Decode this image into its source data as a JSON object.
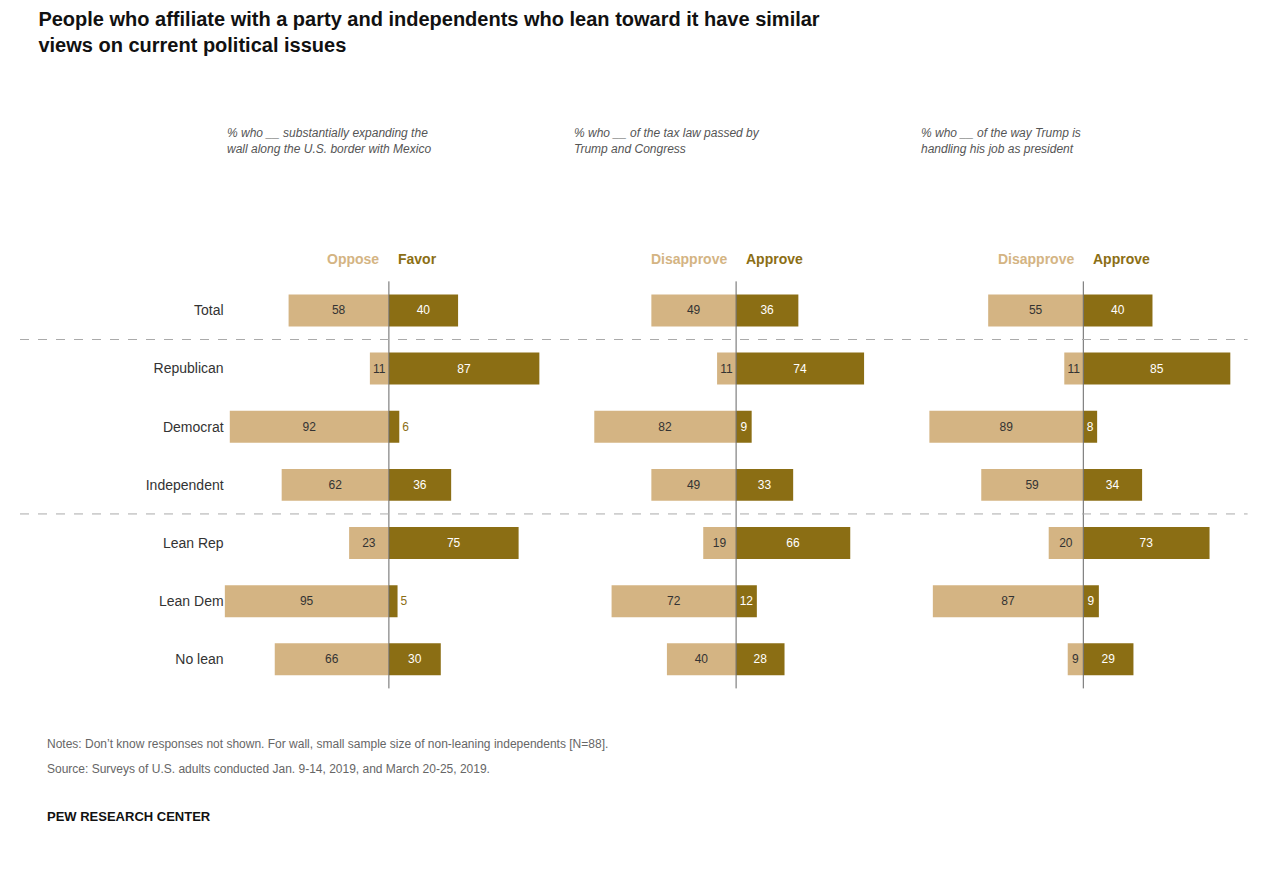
{
  "chart_data": [
    {
      "type": "bar",
      "orientation": "horizontal",
      "data_labels": true,
      "grid": false,
      "tick_labels": "y",
      "title": "People who affiliate with a party and independents who lean toward it have similar\nviews on current political issues",
      "subtitle": "% who __ substantially expanding the\nwall along the U.S. border with Mexico",
      "categories": [
        "Total",
        "Republican",
        "Democrat",
        "Independent",
        "Lean Rep",
        "Lean Dem",
        "No lean"
      ],
      "xlim": [
        0,
        95
      ],
      "series": [
        {
          "name": "Oppose",
          "color": "#d4b483",
          "values": [
            58,
            11,
            92,
            62,
            23,
            95,
            66
          ]
        },
        {
          "name": "Favor",
          "color": "#8b6e14",
          "values": [
            40,
            87,
            6,
            36,
            75,
            5,
            30
          ]
        }
      ],
      "annotations": [
        "Notes: Don’t know responses not shown. For wall, small sample size of non-leaning independents [N=88].",
        "Source: Surveys of U.S. adults conducted Jan. 9-14, 2019, and March 20-25, 2019.",
        "PEW RESEARCH CENTER"
      ]
    },
    {
      "type": "bar",
      "orientation": "horizontal",
      "data_labels": true,
      "grid": false,
      "tick_labels": false,
      "subtitle": "% who __ of the tax law passed by\nTrump and Congress",
      "categories": [
        "Total",
        "Republican",
        "Democrat",
        "Independent",
        "Lean Rep",
        "Lean Dem",
        "No lean"
      ],
      "xlim": [
        0,
        95
      ],
      "series": [
        {
          "name": "Disapprove",
          "color": "#d4b483",
          "values": [
            49,
            11,
            82,
            49,
            19,
            72,
            40
          ]
        },
        {
          "name": "Approve",
          "color": "#8b6e14",
          "values": [
            36,
            74,
            9,
            33,
            66,
            12,
            28
          ]
        }
      ]
    },
    {
      "type": "bar",
      "orientation": "horizontal",
      "data_labels": true,
      "grid": false,
      "tick_labels": false,
      "subtitle": "% who __ of the way Trump is\nhandling his job as president",
      "categories": [
        "Total",
        "Republican",
        "Democrat",
        "Independent",
        "Lean Rep",
        "Lean Dem",
        "No lean"
      ],
      "xlim": [
        0,
        95
      ],
      "series": [
        {
          "name": "Disapprove",
          "color": "#d4b483",
          "values": [
            55,
            11,
            89,
            59,
            20,
            87,
            9
          ]
        },
        {
          "name": "Approve",
          "color": "#8b6e14",
          "values": [
            40,
            85,
            8,
            34,
            73,
            9,
            29
          ]
        }
      ]
    }
  ]
}
